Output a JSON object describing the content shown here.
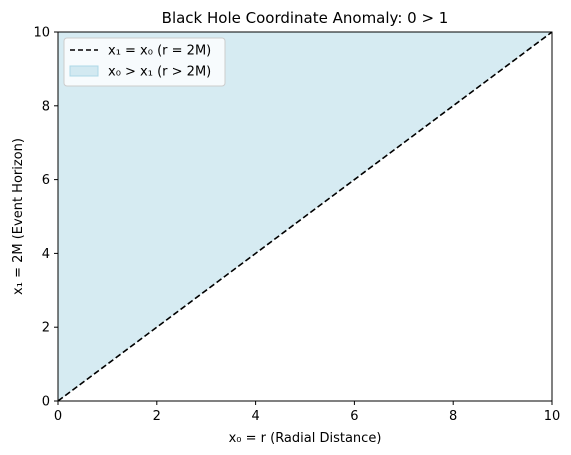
{
  "chart_data": {
    "type": "area",
    "title": "Black Hole Coordinate Anomaly: 0 > 1",
    "xlabel": "x₀ = r (Radial Distance)",
    "ylabel": "x₁ = 2M (Event Horizon)",
    "xlim": [
      0,
      10
    ],
    "ylim": [
      0,
      10
    ],
    "xticks": [
      "0",
      "2",
      "4",
      "6",
      "8",
      "10"
    ],
    "yticks": [
      "0",
      "2",
      "4",
      "6",
      "8",
      "10"
    ],
    "grid": false,
    "legend_position": "top-left",
    "series": [
      {
        "name": "x₁ = x₀ (r = 2M)",
        "kind": "line",
        "style": "dashed",
        "color": "#000000",
        "x": [
          0,
          10
        ],
        "y": [
          0,
          10
        ]
      },
      {
        "name": "x₀ > x₁ (r > 2M)",
        "kind": "fill_between",
        "color": "#add8e6",
        "x": [
          0,
          10
        ],
        "y_lower": [
          0,
          10
        ],
        "y_upper": [
          10,
          10
        ]
      }
    ]
  }
}
